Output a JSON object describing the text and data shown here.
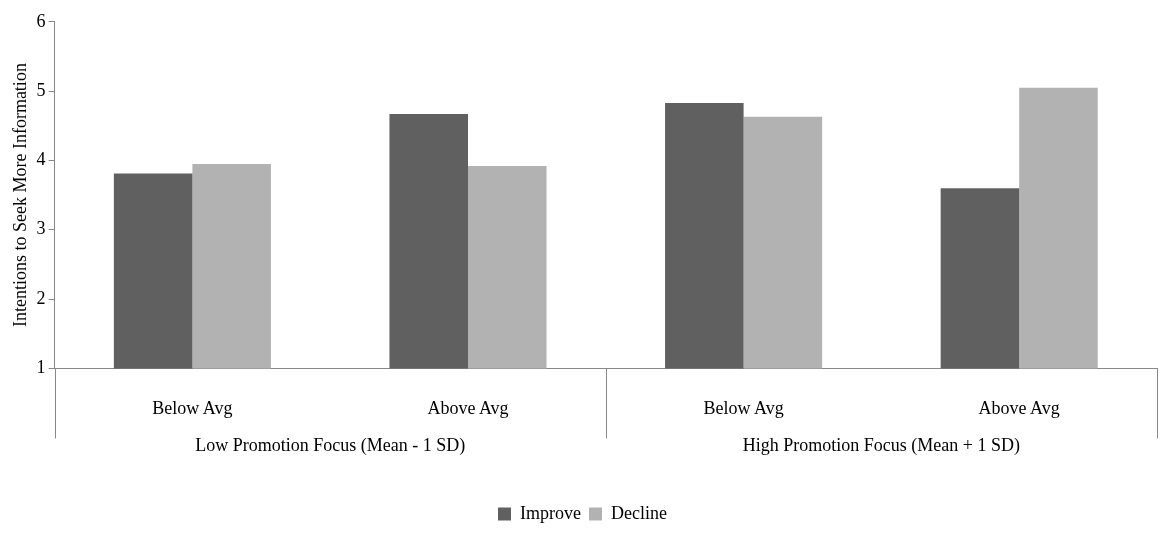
{
  "chart_data": {
    "type": "bar",
    "ylabel": "Intentions to Seek More Information",
    "categories": [
      "Below Avg",
      "Above Avg",
      "Below Avg",
      "Above Avg"
    ],
    "series": [
      {
        "name": "Improve",
        "color": "#606060",
        "values": [
          3.81,
          4.67,
          4.83,
          3.6
        ]
      },
      {
        "name": "Decline",
        "color": "#b2b2b2",
        "values": [
          3.95,
          3.92,
          4.63,
          5.05
        ]
      }
    ],
    "ylim": [
      1,
      6
    ],
    "yticks": [
      1,
      2,
      3,
      4,
      5,
      6
    ],
    "legend": "bottom",
    "annotations": [
      "Low Promotion Focus (Mean - 1 SD)",
      "High Promotion Focus (Mean + 1 SD)"
    ]
  }
}
